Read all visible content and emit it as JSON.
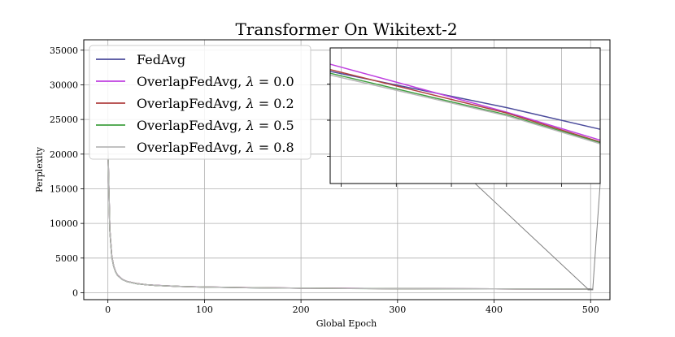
{
  "chart_data": {
    "type": "line",
    "title": "Transformer On Wikitext-2",
    "xlabel": "Global Epoch",
    "ylabel": "Perplexity",
    "xlim": [
      -25,
      520
    ],
    "ylim": [
      -1000,
      36500
    ],
    "xticks": [
      0,
      100,
      200,
      300,
      400,
      500
    ],
    "yticks": [
      0,
      5000,
      10000,
      15000,
      20000,
      25000,
      30000,
      35000
    ],
    "grid": true,
    "legend_position": "upper-left",
    "series": [
      {
        "name": "FedAvg",
        "label_prefix": "FedAvg",
        "label_value": "",
        "color": "#4c4c9c",
        "x": [
          0,
          2,
          4,
          6,
          8,
          10,
          15,
          20,
          30,
          40,
          50,
          75,
          100,
          150,
          200,
          250,
          300,
          350,
          400,
          450,
          500
        ],
        "y": [
          21000,
          9000,
          5200,
          3800,
          3000,
          2500,
          1900,
          1600,
          1300,
          1150,
          1050,
          900,
          820,
          720,
          660,
          620,
          590,
          570,
          555,
          540,
          530
        ]
      },
      {
        "name": "OverlapFedAvg, λ = 0.0",
        "label_prefix": "OverlapFedAvg, ",
        "label_value": "0.0",
        "color": "#bf40e0",
        "x": [
          0,
          2,
          4,
          6,
          8,
          10,
          15,
          20,
          30,
          40,
          50,
          75,
          100,
          150,
          200,
          250,
          300,
          350,
          400,
          450,
          500
        ],
        "y": [
          21000,
          9100,
          5300,
          3850,
          3050,
          2550,
          1930,
          1620,
          1320,
          1160,
          1060,
          905,
          825,
          722,
          661,
          620,
          589,
          568,
          551,
          536,
          524
        ]
      },
      {
        "name": "OverlapFedAvg, λ = 0.2",
        "label_prefix": "OverlapFedAvg, ",
        "label_value": "0.2",
        "color": "#b04040",
        "x": [
          0,
          2,
          4,
          6,
          8,
          10,
          15,
          20,
          30,
          40,
          50,
          75,
          100,
          150,
          200,
          250,
          300,
          350,
          400,
          450,
          500
        ],
        "y": [
          21000,
          9050,
          5250,
          3820,
          3020,
          2520,
          1910,
          1610,
          1310,
          1155,
          1055,
          902,
          822,
          721,
          660,
          619,
          588,
          567,
          550,
          535,
          523
        ]
      },
      {
        "name": "OverlapFedAvg, λ = 0.5",
        "label_prefix": "OverlapFedAvg, ",
        "label_value": "0.5",
        "color": "#40a040",
        "x": [
          0,
          2,
          4,
          6,
          8,
          10,
          15,
          20,
          30,
          40,
          50,
          75,
          100,
          150,
          200,
          250,
          300,
          350,
          400,
          450,
          500
        ],
        "y": [
          21000,
          9020,
          5220,
          3810,
          3010,
          2510,
          1905,
          1605,
          1305,
          1152,
          1052,
          901,
          821,
          720,
          659,
          618,
          588,
          567,
          550,
          535,
          522
        ]
      },
      {
        "name": "OverlapFedAvg, λ = 0.8",
        "label_prefix": "OverlapFedAvg, ",
        "label_value": "0.8",
        "color": "#b8b8b8",
        "x": [
          0,
          2,
          4,
          6,
          8,
          10,
          15,
          20,
          30,
          40,
          50,
          75,
          100,
          150,
          200,
          250,
          300,
          350,
          400,
          450,
          500
        ],
        "y": [
          21000,
          9030,
          5230,
          3815,
          3015,
          2515,
          1907,
          1607,
          1307,
          1153,
          1053,
          901,
          821,
          720,
          659,
          618,
          588,
          567,
          550,
          535,
          522
        ]
      }
    ],
    "inset": {
      "xlim": [
        497.3,
        502.2
      ],
      "ylim": [
        519,
        534
      ],
      "grid": true,
      "series": [
        {
          "color": "#4c4c9c",
          "x": [
            497.3,
            500.5,
            502.2
          ],
          "y": [
            531.4,
            527.4,
            525.0
          ]
        },
        {
          "color": "#bf40e0",
          "x": [
            497.3,
            500.5,
            502.2
          ],
          "y": [
            532.2,
            526.9,
            523.8
          ]
        },
        {
          "color": "#b04040",
          "x": [
            497.3,
            500.5,
            502.2
          ],
          "y": [
            531.6,
            526.8,
            523.6
          ]
        },
        {
          "color": "#40a040",
          "x": [
            497.3,
            500.5,
            502.2
          ],
          "y": [
            531.2,
            526.6,
            523.5
          ]
        },
        {
          "color": "#b8b8b8",
          "x": [
            497.3,
            500.5,
            502.2
          ],
          "y": [
            531.0,
            526.5,
            523.4
          ]
        }
      ]
    }
  }
}
